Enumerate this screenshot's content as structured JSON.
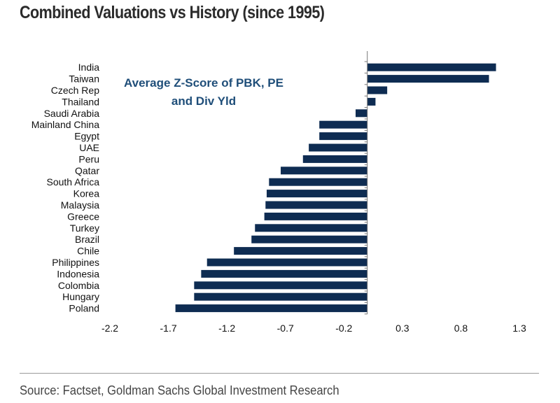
{
  "title": "Combined Valuations vs History (since 1995)",
  "source": "Source: Factset, Goldman Sachs Global Investment Research",
  "chart_data": {
    "type": "bar",
    "orientation": "horizontal",
    "annotation": [
      "Average Z-Score of PBK, PE",
      "and Div Yld"
    ],
    "categories": [
      "India",
      "Taiwan",
      "Czech Rep",
      "Thailand",
      "Saudi Arabia",
      "Mainland China",
      "Egypt",
      "UAE",
      "Peru",
      "Qatar",
      "South Africa",
      "Korea",
      "Malaysia",
      "Greece",
      "Turkey",
      "Brazil",
      "Chile",
      "Philippines",
      "Indonesia",
      "Colombia",
      "Hungary",
      "Poland"
    ],
    "values": [
      1.1,
      1.04,
      0.17,
      0.07,
      -0.1,
      -0.41,
      -0.41,
      -0.5,
      -0.55,
      -0.74,
      -0.84,
      -0.86,
      -0.87,
      -0.88,
      -0.96,
      -0.99,
      -1.14,
      -1.37,
      -1.42,
      -1.48,
      -1.48,
      -1.64
    ],
    "xticks": [
      "-2.2",
      "-1.7",
      "-1.2",
      "-0.7",
      "-0.2",
      "0.3",
      "0.8",
      "1.3"
    ],
    "xlim": [
      -2.2,
      1.3
    ],
    "bar_color": "#0e2c52"
  }
}
